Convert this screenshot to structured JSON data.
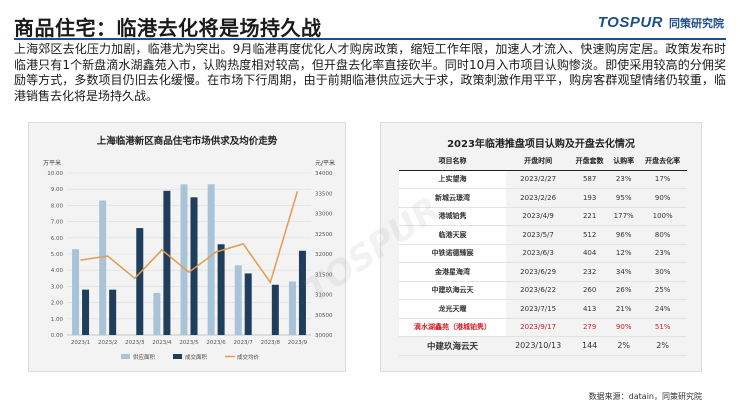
{
  "page": {
    "title": "商品住宅：临港去化将是场持久战",
    "logo_mark": "TOSPUR",
    "logo_text": "同策研究院",
    "paragraph": "上海郊区去化压力加剧，临港尤为突出。9月临港再度优化人才购房政策，缩短工作年限，加速人才流入、快速购房定居。政策发布时临港只有1个新盘滴水湖鑫苑入市，认购热度相对较高，但开盘去化率直接砍半。同时10月入市项目认购惨淡。即使采用较高的分佣奖励等方式，多数项目仍旧去化缓慢。在市场下行周期，由于前期临港供应远大于求，政策刺激作用平平，购房客群观望情绪仍较重，临港销售去化将是场持久战。",
    "source": "数据来源：datain，同策研究院",
    "watermark": "TOSPUR"
  },
  "chart_data": {
    "type": "bar",
    "title": "上海临港新区商品住宅市场供求及均价走势",
    "categories": [
      "2023/1",
      "2023/2",
      "2023/3",
      "2023/4",
      "2023/5",
      "2023/6",
      "2023/7",
      "2023/8",
      "2023/9"
    ],
    "ylabel_left": "万平米",
    "ylabel_right": "元/平米",
    "ylim_left": [
      0,
      10
    ],
    "ylim_right": [
      30000,
      34000
    ],
    "yticks_left": [
      "0.00",
      "1.00",
      "2.00",
      "3.00",
      "4.00",
      "5.00",
      "6.00",
      "7.00",
      "8.00",
      "9.00",
      "10.00"
    ],
    "yticks_right": [
      "30000",
      "30500",
      "31000",
      "31500",
      "32000",
      "32500",
      "33000",
      "33500",
      "34000"
    ],
    "series": [
      {
        "name": "供应面积",
        "kind": "bar",
        "color": "#a9c4d8",
        "values": [
          5.3,
          8.3,
          0,
          2.6,
          9.3,
          9.3,
          4.3,
          0,
          3.3
        ]
      },
      {
        "name": "成交面积",
        "kind": "bar",
        "color": "#1f3e5c",
        "values": [
          2.8,
          2.8,
          6.6,
          8.9,
          8.5,
          5.6,
          3.8,
          3.1,
          5.2
        ]
      },
      {
        "name": "成交均价",
        "kind": "line",
        "color": "#e59a4e",
        "values": [
          31850,
          31950,
          31400,
          32100,
          31550,
          32050,
          32250,
          31300,
          33550
        ]
      }
    ],
    "legend": "bottom"
  },
  "table": {
    "title": "2023年临港推盘项目认购及开盘去化情况",
    "headers": [
      "项目名称",
      "开盘时间",
      "开盘套数",
      "认购率",
      "开盘去化率"
    ],
    "rows": [
      {
        "name": "上实望海",
        "date": "2023/2/27",
        "units": "587",
        "rate": "23%",
        "sold": "17%",
        "style": ""
      },
      {
        "name": "新城云璟湾",
        "date": "2023/2/26",
        "units": "193",
        "rate": "95%",
        "sold": "90%",
        "style": ""
      },
      {
        "name": "港城铂隽",
        "date": "2023/4/9",
        "units": "221",
        "rate": "177%",
        "sold": "100%",
        "style": ""
      },
      {
        "name": "临港天宸",
        "date": "2023/5/7",
        "units": "512",
        "rate": "96%",
        "sold": "80%",
        "style": ""
      },
      {
        "name": "中铁诺德臻宸",
        "date": "2023/6/3",
        "units": "404",
        "rate": "12%",
        "sold": "23%",
        "style": ""
      },
      {
        "name": "金港星海湾",
        "date": "2023/6/29",
        "units": "232",
        "rate": "34%",
        "sold": "30%",
        "style": ""
      },
      {
        "name": "中建玖海云天",
        "date": "2023/6/22",
        "units": "260",
        "rate": "26%",
        "sold": "25%",
        "style": ""
      },
      {
        "name": "龙光天曜",
        "date": "2023/7/15",
        "units": "413",
        "rate": "21%",
        "sold": "24%",
        "style": ""
      },
      {
        "name": "滴水湖鑫苑（港城铂隽）",
        "date": "2023/9/17",
        "units": "279",
        "rate": "90%",
        "sold": "51%",
        "style": "hl"
      },
      {
        "name": "中建玖海云天",
        "date": "2023/10/13",
        "units": "144",
        "rate": "2%",
        "sold": "2%",
        "style": "big"
      }
    ]
  }
}
